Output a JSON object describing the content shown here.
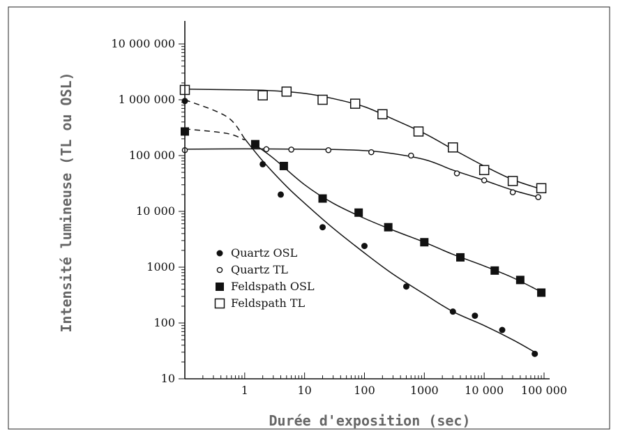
{
  "chart_data": {
    "type": "scatter",
    "title": "",
    "xlabel": "Durée d'exposition (sec)",
    "ylabel": "Intensité lumineuse (TL ou OSL)",
    "x_scale": "log",
    "y_scale": "log",
    "xlim": [
      0.1,
      100000
    ],
    "ylim": [
      10,
      10000000
    ],
    "x_ticks": [
      {
        "value": 1,
        "label": "1"
      },
      {
        "value": 10,
        "label": "10"
      },
      {
        "value": 100,
        "label": "100"
      },
      {
        "value": 1000,
        "label": "1000"
      },
      {
        "value": 10000,
        "label": "10 000"
      },
      {
        "value": 100000,
        "label": "100 000"
      }
    ],
    "y_ticks": [
      {
        "value": 10,
        "label": "10"
      },
      {
        "value": 100,
        "label": "100"
      },
      {
        "value": 1000,
        "label": "1000"
      },
      {
        "value": 10000,
        "label": "10 000"
      },
      {
        "value": 100000,
        "label": "100 000"
      },
      {
        "value": 1000000,
        "label": "1 000 000"
      },
      {
        "value": 10000000,
        "label": "10 000 000"
      }
    ],
    "grid": false,
    "legend_position": "bottom-left",
    "series": [
      {
        "name": "Quartz OSL",
        "marker": "filled-circle",
        "points": [
          [
            0.1,
            950000
          ],
          [
            2,
            70000
          ],
          [
            4,
            20000
          ],
          [
            20,
            5200
          ],
          [
            100,
            2400
          ],
          [
            500,
            450
          ],
          [
            3000,
            160
          ],
          [
            7000,
            135
          ],
          [
            20000,
            75
          ],
          [
            70000,
            28
          ]
        ],
        "curve": [
          [
            0.1,
            1000000
          ],
          [
            0.5,
            500000
          ],
          [
            1,
            200000
          ],
          [
            2,
            80000
          ],
          [
            5,
            28000
          ],
          [
            10,
            14000
          ],
          [
            30,
            5000
          ],
          [
            100,
            1800
          ],
          [
            300,
            750
          ],
          [
            1000,
            330
          ],
          [
            3000,
            160
          ],
          [
            10000,
            90
          ],
          [
            30000,
            50
          ],
          [
            70000,
            30
          ]
        ],
        "dashed_until": 1
      },
      {
        "name": "Quartz TL",
        "marker": "open-circle",
        "points": [
          [
            0.1,
            125000
          ],
          [
            2.3,
            130000
          ],
          [
            6,
            128000
          ],
          [
            25,
            125000
          ],
          [
            130,
            115000
          ],
          [
            600,
            100000
          ],
          [
            3500,
            48000
          ],
          [
            10000,
            36000
          ],
          [
            30000,
            22000
          ],
          [
            80000,
            18000
          ]
        ],
        "curve": [
          [
            0.1,
            130000
          ],
          [
            1,
            132000
          ],
          [
            10,
            130000
          ],
          [
            50,
            127000
          ],
          [
            200,
            115000
          ],
          [
            1000,
            85000
          ],
          [
            3000,
            55000
          ],
          [
            10000,
            36000
          ],
          [
            30000,
            24000
          ],
          [
            80000,
            18000
          ]
        ],
        "dashed_until": null
      },
      {
        "name": "Feldspath OSL",
        "marker": "filled-square",
        "points": [
          [
            0.1,
            270000
          ],
          [
            1.5,
            160000
          ],
          [
            4.5,
            65000
          ],
          [
            20,
            17000
          ],
          [
            80,
            9500
          ],
          [
            250,
            5200
          ],
          [
            1000,
            2800
          ],
          [
            4000,
            1500
          ],
          [
            15000,
            870
          ],
          [
            40000,
            590
          ],
          [
            90000,
            350
          ]
        ],
        "curve": [
          [
            0.1,
            300000
          ],
          [
            0.5,
            250000
          ],
          [
            1,
            190000
          ],
          [
            1.5,
            155000
          ],
          [
            3,
            90000
          ],
          [
            10,
            30000
          ],
          [
            30,
            14000
          ],
          [
            100,
            7500
          ],
          [
            300,
            4600
          ],
          [
            1000,
            2800
          ],
          [
            3000,
            1700
          ],
          [
            10000,
            1050
          ],
          [
            30000,
            650
          ],
          [
            90000,
            360
          ]
        ],
        "dashed_until": 1.2
      },
      {
        "name": "Feldspath TL",
        "marker": "open-square",
        "points": [
          [
            0.1,
            1500000
          ],
          [
            2,
            1200000
          ],
          [
            5,
            1400000
          ],
          [
            20,
            1000000
          ],
          [
            70,
            850000
          ],
          [
            200,
            550000
          ],
          [
            800,
            270000
          ],
          [
            3000,
            140000
          ],
          [
            10000,
            55000
          ],
          [
            30000,
            35000
          ],
          [
            90000,
            26000
          ]
        ],
        "curve": [
          [
            0.1,
            1550000
          ],
          [
            1,
            1500000
          ],
          [
            3,
            1450000
          ],
          [
            10,
            1300000
          ],
          [
            30,
            1050000
          ],
          [
            100,
            750000
          ],
          [
            300,
            450000
          ],
          [
            1000,
            250000
          ],
          [
            3000,
            130000
          ],
          [
            10000,
            65000
          ],
          [
            30000,
            37000
          ],
          [
            90000,
            25000
          ]
        ],
        "dashed_until": null
      }
    ]
  }
}
